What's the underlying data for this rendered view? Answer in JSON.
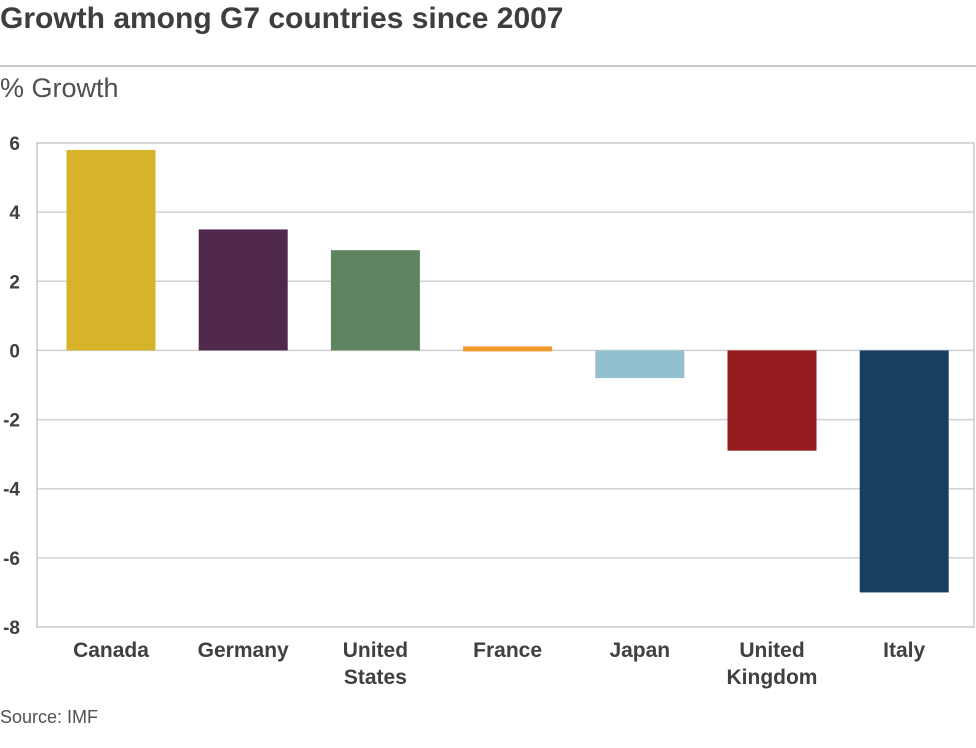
{
  "chart_data": {
    "type": "bar",
    "title": "Growth among G7 countries since 2007",
    "ylabel": "% Growth",
    "xlabel": "",
    "source": "Source: IMF",
    "ylim": [
      -8,
      6
    ],
    "yticks": [
      6,
      4,
      2,
      0,
      -2,
      -4,
      -6,
      -8
    ],
    "grid": true,
    "categories": [
      [
        "Canada"
      ],
      [
        "Germany"
      ],
      [
        "United",
        "States"
      ],
      [
        "France"
      ],
      [
        "Japan"
      ],
      [
        "United",
        "Kingdom"
      ],
      [
        "Italy"
      ]
    ],
    "values": [
      5.8,
      3.5,
      2.9,
      0.1,
      -0.8,
      -2.9,
      -7.0
    ],
    "colors": [
      "#d6b329",
      "#50274d",
      "#5e8560",
      "#f39a2c",
      "#93c0cf",
      "#961b1e",
      "#163f60"
    ]
  }
}
